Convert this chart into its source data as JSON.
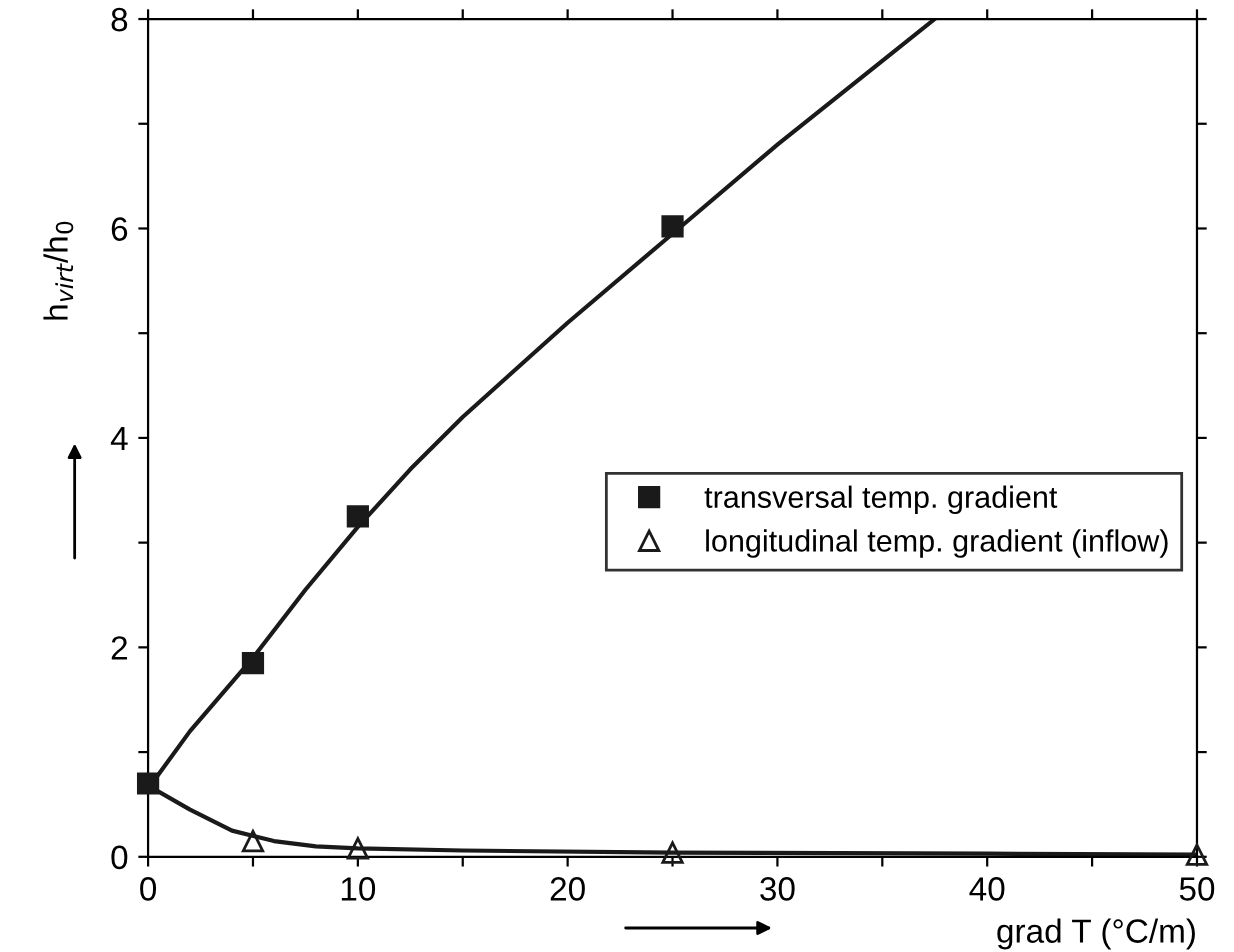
{
  "chart_data": {
    "type": "scatter",
    "xlabel": "grad T (°C/m)",
    "ylabel": "h$_{virt}$/h$_{0}$",
    "xlim": [
      0,
      50
    ],
    "ylim": [
      0,
      8
    ],
    "xticks": [
      0,
      {
        "value": 5,
        "label": null
      },
      10,
      {
        "value": 15,
        "label": null
      },
      20,
      {
        "value": 25,
        "label": null
      },
      30,
      {
        "value": 35,
        "label": null
      },
      40,
      {
        "value": 45,
        "label": null
      },
      50
    ],
    "yticks": [
      0,
      {
        "value": 1,
        "label": null
      },
      2,
      {
        "value": 3,
        "label": null
      },
      4,
      {
        "value": 5,
        "label": null
      },
      6,
      {
        "value": 7,
        "label": null
      },
      8
    ],
    "grid": false,
    "legend": "right",
    "series": [
      {
        "name": "transversal temp. gradient",
        "color": "#1a1a1a",
        "marker": "square",
        "x": [
          0,
          5,
          10,
          25
        ],
        "values": [
          0.7,
          1.85,
          3.25,
          6.02
        ]
      },
      {
        "name": "longitudinal temp. gradient (inflow)",
        "color": "#1a1a1a",
        "marker": "triangle",
        "x": [
          5,
          10,
          25,
          50
        ],
        "values": [
          0.15,
          0.08,
          0.04,
          0.02
        ]
      },
      {
        "type": "line",
        "color": "#1a1a1a",
        "marker": "none",
        "x": [
          0,
          2,
          5,
          7.5,
          10,
          12.5,
          15,
          20,
          25,
          30,
          35,
          37.5
        ],
        "values": [
          0.65,
          1.2,
          1.9,
          2.55,
          3.15,
          3.7,
          4.2,
          5.1,
          5.95,
          6.8,
          7.6,
          8.0
        ]
      },
      {
        "type": "line",
        "color": "#1a1a1a",
        "marker": "none",
        "x": [
          0,
          2,
          4,
          6,
          8,
          10,
          15,
          25,
          40,
          50
        ],
        "values": [
          0.68,
          0.45,
          0.25,
          0.15,
          0.1,
          0.08,
          0.06,
          0.04,
          0.03,
          0.02
        ]
      }
    ]
  }
}
